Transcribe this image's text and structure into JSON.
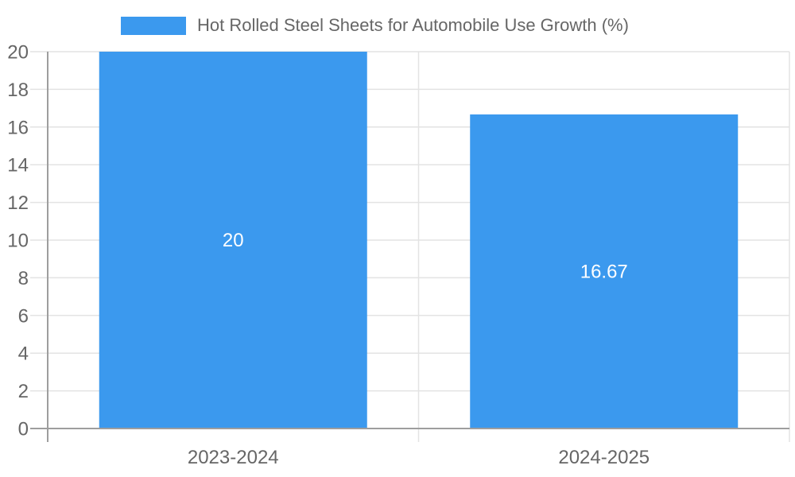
{
  "legend": {
    "label": "Hot Rolled Steel Sheets for Automobile Use Growth (%)",
    "swatch_color": "#3B99EE"
  },
  "chart_data": {
    "type": "bar",
    "title": "Hot Rolled Steel Sheets for Automobile Use Growth (%)",
    "categories": [
      "2023-2024",
      "2024-2025"
    ],
    "values": [
      20,
      16.67
    ],
    "value_labels": [
      "20",
      "16.67"
    ],
    "xlabel": "",
    "ylabel": "",
    "ylim": [
      0,
      20
    ],
    "yticks": [
      0,
      2,
      4,
      6,
      8,
      10,
      12,
      14,
      16,
      18,
      20
    ],
    "grid": true,
    "legend_position": "top",
    "bar_color": "#3B99EE",
    "value_label_color": "#ffffff"
  },
  "colors": {
    "grid": "#e3e3e3",
    "axis": "#9e9e9e",
    "tick_text": "#666666",
    "legend_text": "#666666"
  }
}
